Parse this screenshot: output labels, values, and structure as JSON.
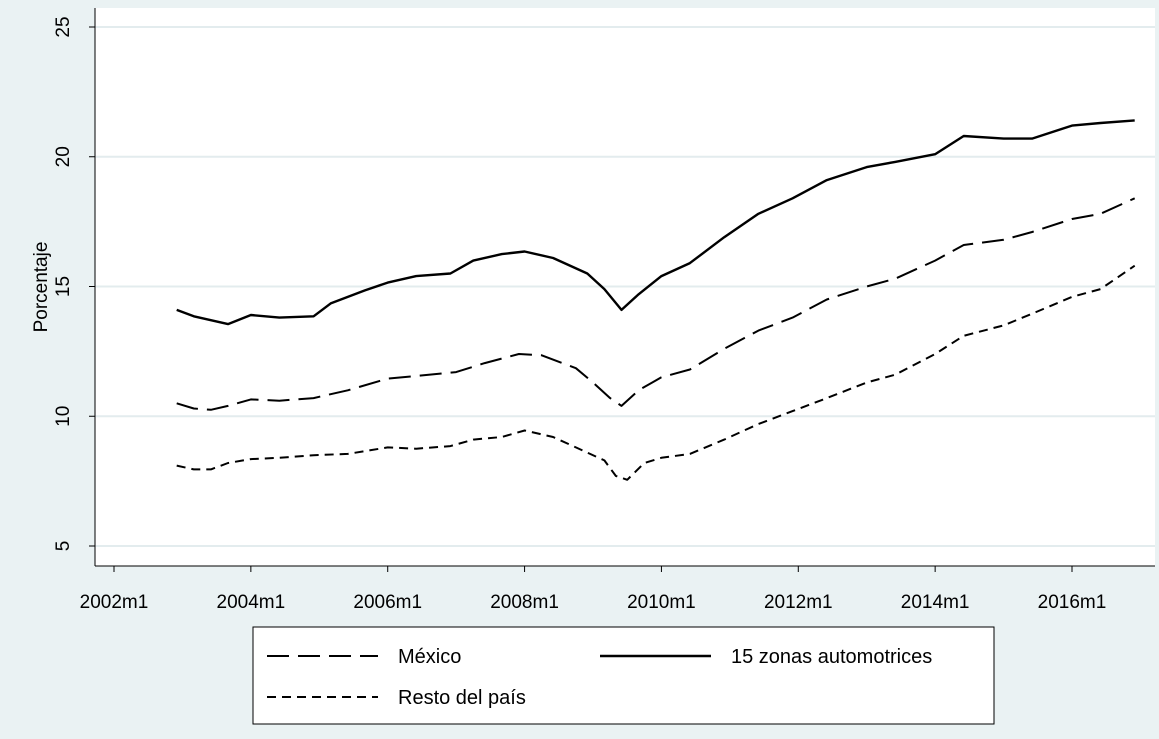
{
  "chart_data": {
    "type": "line",
    "title": "",
    "xlabel": "",
    "ylabel": "Porcentaje",
    "xlim": [
      "2002m1",
      "2017m1"
    ],
    "ylim": [
      5,
      25
    ],
    "x_ticks": [
      "2002m1",
      "2004m1",
      "2006m1",
      "2008m1",
      "2010m1",
      "2012m1",
      "2014m1",
      "2016m1"
    ],
    "y_ticks": [
      "5",
      "10",
      "15",
      "20",
      "25"
    ],
    "grid": "horizontal",
    "legend_position": "bottom",
    "series": [
      {
        "name": "México",
        "dash": "long-dash",
        "points": [
          [
            "2002m12",
            10.5
          ],
          [
            "2003m3",
            10.3
          ],
          [
            "2003m6",
            10.25
          ],
          [
            "2003m9",
            10.4
          ],
          [
            "2004m1",
            10.65
          ],
          [
            "2004m6",
            10.6
          ],
          [
            "2004m12",
            10.7
          ],
          [
            "2005m6",
            11.0
          ],
          [
            "2006m1",
            11.45
          ],
          [
            "2006m6",
            11.55
          ],
          [
            "2007m1",
            11.7
          ],
          [
            "2007m6",
            12.05
          ],
          [
            "2007m12",
            12.4
          ],
          [
            "2008m4",
            12.35
          ],
          [
            "2008m10",
            11.85
          ],
          [
            "2009m1",
            11.3
          ],
          [
            "2009m4",
            10.7
          ],
          [
            "2009m6",
            10.4
          ],
          [
            "2009m9",
            11.0
          ],
          [
            "2010m1",
            11.5
          ],
          [
            "2010m6",
            11.8
          ],
          [
            "2010m12",
            12.6
          ],
          [
            "2011m6",
            13.3
          ],
          [
            "2011m12",
            13.8
          ],
          [
            "2012m6",
            14.5
          ],
          [
            "2013m1",
            15.0
          ],
          [
            "2013m6",
            15.3
          ],
          [
            "2014m1",
            16.0
          ],
          [
            "2014m6",
            16.6
          ],
          [
            "2015m1",
            16.8
          ],
          [
            "2015m6",
            17.1
          ],
          [
            "2016m1",
            17.6
          ],
          [
            "2016m6",
            17.8
          ],
          [
            "2016m12",
            18.4
          ]
        ]
      },
      {
        "name": "15 zonas automotrices",
        "dash": "solid",
        "points": [
          [
            "2002m12",
            14.1
          ],
          [
            "2003m3",
            13.85
          ],
          [
            "2003m6",
            13.7
          ],
          [
            "2003m9",
            13.55
          ],
          [
            "2004m1",
            13.9
          ],
          [
            "2004m6",
            13.8
          ],
          [
            "2004m12",
            13.85
          ],
          [
            "2005m3",
            14.35
          ],
          [
            "2005m9",
            14.85
          ],
          [
            "2006m1",
            15.15
          ],
          [
            "2006m6",
            15.4
          ],
          [
            "2006m12",
            15.5
          ],
          [
            "2007m4",
            16.0
          ],
          [
            "2007m9",
            16.25
          ],
          [
            "2008m1",
            16.35
          ],
          [
            "2008m6",
            16.1
          ],
          [
            "2008m12",
            15.5
          ],
          [
            "2009m3",
            14.9
          ],
          [
            "2009m6",
            14.1
          ],
          [
            "2009m9",
            14.7
          ],
          [
            "2010m1",
            15.4
          ],
          [
            "2010m6",
            15.9
          ],
          [
            "2010m12",
            16.9
          ],
          [
            "2011m6",
            17.8
          ],
          [
            "2011m12",
            18.4
          ],
          [
            "2012m6",
            19.1
          ],
          [
            "2013m1",
            19.6
          ],
          [
            "2013m6",
            19.8
          ],
          [
            "2014m1",
            20.1
          ],
          [
            "2014m6",
            20.8
          ],
          [
            "2015m1",
            20.7
          ],
          [
            "2015m6",
            20.7
          ],
          [
            "2016m1",
            21.2
          ],
          [
            "2016m6",
            21.3
          ],
          [
            "2016m12",
            21.4
          ]
        ]
      },
      {
        "name": "Resto del país",
        "dash": "short-dash",
        "points": [
          [
            "2002m12",
            8.1
          ],
          [
            "2003m3",
            7.95
          ],
          [
            "2003m6",
            7.95
          ],
          [
            "2003m9",
            8.2
          ],
          [
            "2004m1",
            8.35
          ],
          [
            "2004m6",
            8.4
          ],
          [
            "2004m12",
            8.5
          ],
          [
            "2005m6",
            8.55
          ],
          [
            "2006m1",
            8.8
          ],
          [
            "2006m6",
            8.75
          ],
          [
            "2006m12",
            8.85
          ],
          [
            "2007m4",
            9.1
          ],
          [
            "2007m9",
            9.2
          ],
          [
            "2008m1",
            9.45
          ],
          [
            "2008m6",
            9.2
          ],
          [
            "2008m12",
            8.6
          ],
          [
            "2009m3",
            8.3
          ],
          [
            "2009m5",
            7.7
          ],
          [
            "2009m7",
            7.55
          ],
          [
            "2009m10",
            8.2
          ],
          [
            "2010m1",
            8.4
          ],
          [
            "2010m6",
            8.55
          ],
          [
            "2010m12",
            9.1
          ],
          [
            "2011m6",
            9.7
          ],
          [
            "2011m12",
            10.2
          ],
          [
            "2012m6",
            10.7
          ],
          [
            "2013m1",
            11.3
          ],
          [
            "2013m6",
            11.6
          ],
          [
            "2014m1",
            12.4
          ],
          [
            "2014m6",
            13.1
          ],
          [
            "2015m1",
            13.5
          ],
          [
            "2015m6",
            13.95
          ],
          [
            "2016m1",
            14.6
          ],
          [
            "2016m6",
            14.9
          ],
          [
            "2016m12",
            15.8
          ]
        ]
      }
    ]
  },
  "legend": {
    "items": [
      {
        "label": "México",
        "dash": "long-dash"
      },
      {
        "label": "15 zonas automotrices",
        "dash": "solid"
      },
      {
        "label": "Resto del país",
        "dash": "short-dash"
      }
    ]
  },
  "colors": {
    "background": "#eaf2f3",
    "plot_background": "#ffffff",
    "grid": "#e3ecee",
    "line": "#000000"
  }
}
